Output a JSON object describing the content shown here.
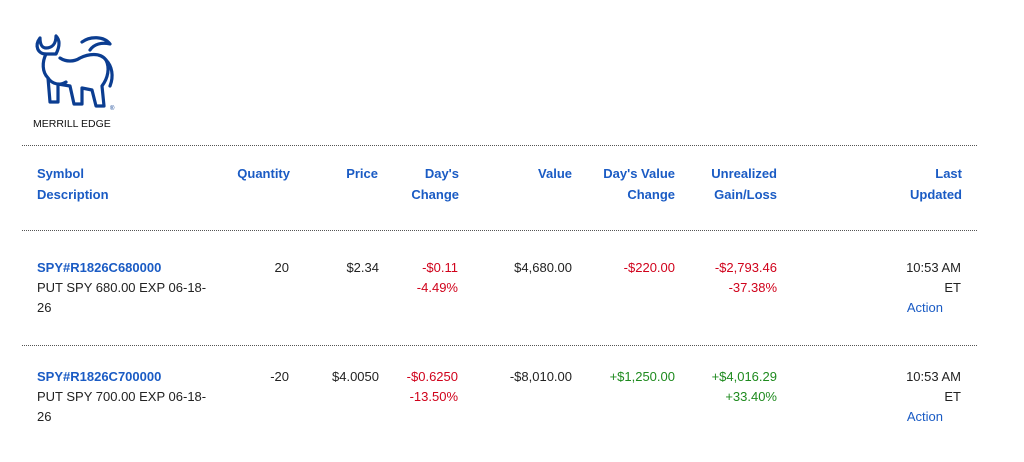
{
  "logo": {
    "text": "MERRILL EDGE"
  },
  "table": {
    "headers": [
      [
        "Symbol",
        "Description"
      ],
      [
        "Quantity"
      ],
      [
        "Price"
      ],
      [
        "Day's",
        "Change"
      ],
      [
        "Value"
      ],
      [
        "Day's Value",
        "Change"
      ],
      [
        "Unrealized",
        "Gain/Loss"
      ],
      [
        "Last",
        "Updated"
      ]
    ],
    "rows": [
      {
        "symbol": "SPY#R1826C680000",
        "description": "PUT SPY 680.00 EXP 06-18-26",
        "quantity": "20",
        "price": "$2.34",
        "days_change": [
          "-$0.11",
          "-4.49%"
        ],
        "value": "$4,680.00",
        "days_value_change": "-$220.00",
        "unrealized": [
          "-$2,793.46",
          "-37.38%"
        ],
        "last_updated": "10:53 AM ET",
        "action": "Action"
      },
      {
        "symbol": "SPY#R1826C700000",
        "description": "PUT SPY 700.00 EXP 06-18-26",
        "quantity": "-20",
        "price": "$4.0050",
        "days_change": [
          "-$0.6250",
          "-13.50%"
        ],
        "value": "-$8,010.00",
        "days_value_change": "+$1,250.00",
        "unrealized": [
          "+$4,016.29",
          "+33.40%"
        ],
        "last_updated": "10:53 AM ET",
        "action": "Action"
      }
    ]
  }
}
